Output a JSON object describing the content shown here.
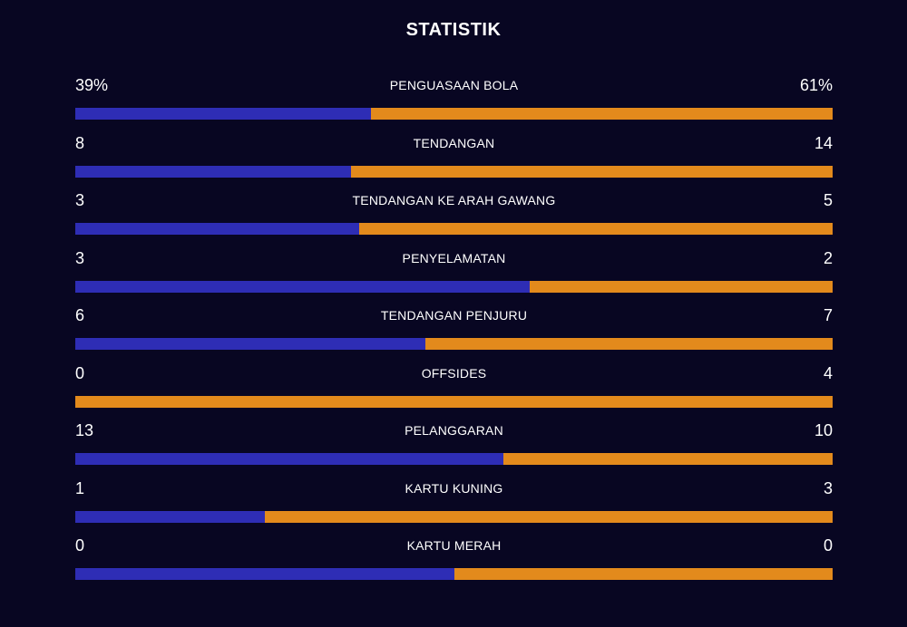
{
  "title": "STATISTIK",
  "colors": {
    "home": "#2E2DB5",
    "away": "#E38A1C",
    "background": "#080622"
  },
  "stats": [
    {
      "label": "PENGUASAAN BOLA",
      "home": "39%",
      "away": "61%",
      "home_share": 0.39
    },
    {
      "label": "TENDANGAN",
      "home": "8",
      "away": "14",
      "home_share": 0.364
    },
    {
      "label": "TENDANGAN KE ARAH GAWANG",
      "home": "3",
      "away": "5",
      "home_share": 0.375
    },
    {
      "label": "PENYELAMATAN",
      "home": "3",
      "away": "2",
      "home_share": 0.6
    },
    {
      "label": "TENDANGAN PENJURU",
      "home": "6",
      "away": "7",
      "home_share": 0.462
    },
    {
      "label": "OFFSIDES",
      "home": "0",
      "away": "4",
      "home_share": 0.0
    },
    {
      "label": "PELANGGARAN",
      "home": "13",
      "away": "10",
      "home_share": 0.565
    },
    {
      "label": "KARTU KUNING",
      "home": "1",
      "away": "3",
      "home_share": 0.25
    },
    {
      "label": "KARTU MERAH",
      "home": "0",
      "away": "0",
      "home_share": 0.5
    }
  ]
}
